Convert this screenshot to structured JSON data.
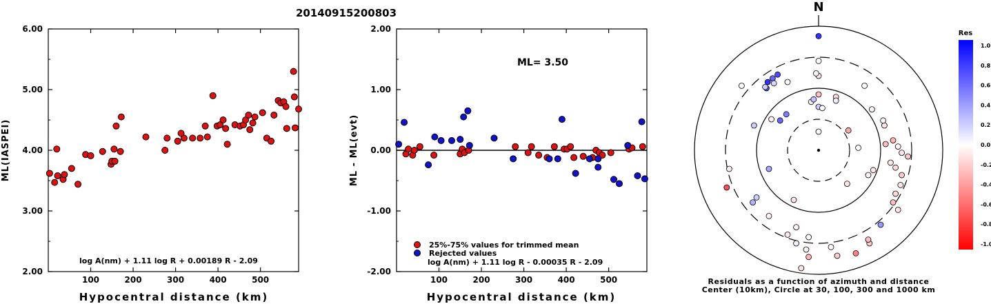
{
  "title": "20140915200803",
  "colors": {
    "used": "#dd1111",
    "rejected": "#1111cc",
    "axis": "#000000"
  },
  "chart_data": [
    {
      "type": "scatter",
      "xlabel": "Hypocentral distance (km)",
      "ylabel": "ML(IASPEI)",
      "xlim": [
        0,
        590
      ],
      "ylim": [
        2.0,
        6.0
      ],
      "yticks": [
        "6.00",
        "5.00",
        "4.00",
        "3.00",
        "2.00"
      ],
      "ytick_values": [
        6,
        5,
        4,
        3,
        2
      ],
      "xticks": [
        "100",
        "200",
        "300",
        "400",
        "500"
      ],
      "xtick_values": [
        100,
        200,
        300,
        400,
        500
      ],
      "annotation": "log A(nm) + 1.11 log R + 0.00189 R - 2.09",
      "series": [
        {
          "points": [
            [
              3,
              3.62
            ],
            [
              15,
              3.47
            ],
            [
              20,
              4.02
            ],
            [
              22,
              3.58
            ],
            [
              35,
              3.52
            ],
            [
              38,
              3.6
            ],
            [
              55,
              3.7
            ],
            [
              70,
              3.44
            ],
            [
              88,
              3.93
            ],
            [
              100,
              3.91
            ],
            [
              128,
              3.98
            ],
            [
              148,
              3.77
            ],
            [
              150,
              3.82
            ],
            [
              155,
              4.02
            ],
            [
              157,
              3.82
            ],
            [
              160,
              4.4
            ],
            [
              170,
              3.98
            ],
            [
              172,
              4.55
            ],
            [
              230,
              4.22
            ],
            [
              275,
              4.0
            ],
            [
              280,
              4.2
            ],
            [
              305,
              4.15
            ],
            [
              313,
              4.28
            ],
            [
              320,
              4.2
            ],
            [
              340,
              4.2
            ],
            [
              358,
              4.2
            ],
            [
              370,
              4.4
            ],
            [
              375,
              4.22
            ],
            [
              388,
              4.9
            ],
            [
              398,
              4.4
            ],
            [
              405,
              4.42
            ],
            [
              412,
              4.5
            ],
            [
              418,
              4.36
            ],
            [
              422,
              4.1
            ],
            [
              440,
              4.42
            ],
            [
              452,
              4.4
            ],
            [
              460,
              4.42
            ],
            [
              465,
              4.5
            ],
            [
              472,
              4.58
            ],
            [
              475,
              4.34
            ],
            [
              482,
              4.45
            ],
            [
              487,
              4.55
            ],
            [
              505,
              4.62
            ],
            [
              515,
              4.2
            ],
            [
              525,
              4.15
            ],
            [
              532,
              4.58
            ],
            [
              542,
              4.82
            ],
            [
              548,
              4.78
            ],
            [
              555,
              4.8
            ],
            [
              560,
              4.72
            ],
            [
              562,
              4.36
            ],
            [
              578,
              5.3
            ],
            [
              580,
              4.88
            ],
            [
              582,
              4.37
            ],
            [
              590,
              4.68
            ]
          ]
        }
      ]
    },
    {
      "type": "scatter",
      "xlabel": "Hypocentral distance (km)",
      "ylabel": "ML - ML(evt)",
      "xlim": [
        0,
        590
      ],
      "ylim": [
        -2.0,
        2.0
      ],
      "yticks": [
        "2.00",
        "1.00",
        "0.00",
        "-1.00",
        "-2.00"
      ],
      "ytick_values": [
        2,
        1,
        0,
        -1,
        -2
      ],
      "xticks": [
        "100",
        "200",
        "300",
        "400",
        "500"
      ],
      "xtick_values": [
        100,
        200,
        300,
        400,
        500
      ],
      "ml_label": "ML= 3.50",
      "legend": [
        "25%-75% values for trimmed mean",
        "Rejected values"
      ],
      "annotation": "log A(nm) + 1.11 log R - 0.00035 R - 2.09",
      "series": [
        {
          "name": "25%-75% values for trimmed mean",
          "points": [
            [
              22,
              -0.06
            ],
            [
              28,
              0.02
            ],
            [
              38,
              -0.08
            ],
            [
              42,
              0.0
            ],
            [
              55,
              0.06
            ],
            [
              88,
              -0.08
            ],
            [
              150,
              -0.06
            ],
            [
              155,
              0.02
            ],
            [
              160,
              -0.04
            ],
            [
              170,
              0.0
            ],
            [
              280,
              0.06
            ],
            [
              310,
              -0.04
            ],
            [
              318,
              0.06
            ],
            [
              335,
              -0.08
            ],
            [
              355,
              -0.12
            ],
            [
              372,
              0.06
            ],
            [
              395,
              0.02
            ],
            [
              402,
              0.02
            ],
            [
              410,
              0.06
            ],
            [
              418,
              -0.12
            ],
            [
              440,
              -0.1
            ],
            [
              462,
              -0.12
            ],
            [
              470,
              0.0
            ],
            [
              478,
              -0.04
            ],
            [
              485,
              -0.08
            ],
            [
              505,
              -0.04
            ],
            [
              548,
              0.02
            ],
            [
              555,
              0.04
            ],
            [
              580,
              0.06
            ]
          ]
        },
        {
          "name": "Rejected values",
          "points": [
            [
              5,
              0.1
            ],
            [
              18,
              0.46
            ],
            [
              75,
              -0.24
            ],
            [
              90,
              0.22
            ],
            [
              105,
              0.16
            ],
            [
              130,
              0.16
            ],
            [
              150,
              0.18
            ],
            [
              158,
              0.55
            ],
            [
              168,
              0.65
            ],
            [
              172,
              0.08
            ],
            [
              230,
              0.2
            ],
            [
              275,
              -0.14
            ],
            [
              360,
              -0.14
            ],
            [
              380,
              -0.14
            ],
            [
              390,
              0.51
            ],
            [
              422,
              -0.38
            ],
            [
              455,
              -0.14
            ],
            [
              475,
              -0.28
            ],
            [
              475,
              -0.14
            ],
            [
              512,
              -0.48
            ],
            [
              525,
              -0.55
            ],
            [
              545,
              0.08
            ],
            [
              568,
              -0.42
            ],
            [
              578,
              0.47
            ],
            [
              585,
              -0.47
            ]
          ]
        }
      ]
    }
  ],
  "polar": {
    "north_label": "N",
    "caption_line1": "Residuals as a function of azimuth and distance",
    "caption_line2": "Center (10km), Circle at 30, 100, 300 and 1000 km",
    "residuals": [
      [
        0.0,
        0.15,
        -0.02
      ],
      [
        0.0,
        0.35,
        0.2
      ],
      [
        0.0,
        0.72,
        0.02
      ],
      [
        0.0,
        0.92,
        0.8
      ],
      [
        0.0,
        0.6,
        -0.1
      ],
      [
        -0.02,
        0.62,
        0.05
      ],
      [
        0.0,
        0.45,
        -0.25
      ],
      [
        -0.08,
        -0.7,
        0.02
      ],
      [
        -0.14,
        -0.95,
        -0.1
      ],
      [
        -0.1,
        -0.8,
        -0.05
      ],
      [
        -0.42,
        0.5,
        0.7
      ],
      [
        -0.33,
        0.61,
        0.7
      ],
      [
        -0.37,
        0.58,
        0.6
      ],
      [
        -0.41,
        0.55,
        0.8
      ],
      [
        -0.43,
        0.51,
        0.2
      ],
      [
        -0.36,
        0.54,
        0.15
      ],
      [
        -0.26,
        0.29,
        0.5
      ],
      [
        -0.31,
        0.24,
        0.6
      ],
      [
        -0.25,
        0.55,
        0.0
      ],
      [
        -0.06,
        0.39,
        -0.05
      ],
      [
        0.03,
        0.34,
        0.0
      ],
      [
        0.14,
        0.43,
        -0.15
      ],
      [
        0.37,
        0.52,
        0.0
      ],
      [
        0.43,
        0.33,
        -0.05
      ],
      [
        0.53,
        0.2,
        -0.1
      ],
      [
        0.54,
        0.05,
        -0.25
      ],
      [
        0.6,
        0.08,
        -0.3
      ],
      [
        0.64,
        0.03,
        -0.05
      ],
      [
        0.67,
        -0.02,
        -0.1
      ],
      [
        0.72,
        -0.05,
        -0.2
      ],
      [
        0.58,
        -0.1,
        -0.1
      ],
      [
        0.62,
        -0.14,
        -0.15
      ],
      [
        0.67,
        -0.2,
        -0.2
      ],
      [
        0.66,
        -0.28,
        -0.1
      ],
      [
        0.62,
        -0.35,
        -0.15
      ],
      [
        0.6,
        -0.42,
        -0.25
      ],
      [
        0.64,
        -0.48,
        -0.1
      ],
      [
        0.5,
        -0.6,
        0.4
      ],
      [
        0.41,
        -0.75,
        -0.2
      ],
      [
        0.3,
        -0.83,
        -0.5
      ],
      [
        0.15,
        -0.85,
        -0.2
      ],
      [
        0.1,
        -0.78,
        -0.05
      ],
      [
        -0.08,
        -0.86,
        -0.3
      ],
      [
        -0.18,
        -0.75,
        0.05
      ],
      [
        -0.25,
        -0.68,
        -0.1
      ],
      [
        -0.4,
        -0.53,
        -0.05
      ],
      [
        -0.5,
        -0.38,
        0.2
      ],
      [
        -0.53,
        -0.42,
        0.3
      ],
      [
        -0.72,
        -0.15,
        -0.05
      ],
      [
        -0.74,
        -0.3,
        -0.7
      ],
      [
        -0.62,
        0.52,
        0.0
      ],
      [
        -0.38,
        0.25,
        -0.05
      ],
      [
        -0.4,
        -0.15,
        0.35
      ],
      [
        -0.2,
        -0.4,
        -0.1
      ],
      [
        0.44,
        -0.16,
        -0.1
      ],
      [
        0.32,
        0.02,
        0.0
      ],
      [
        0.4,
        -0.2,
        -0.05
      ],
      [
        -0.18,
        -0.62,
        -0.05
      ],
      [
        0.23,
        -0.27,
        -0.1
      ],
      [
        0.14,
        0.4,
        0.05
      ],
      [
        -0.04,
        0.41,
        0.25
      ],
      [
        0.52,
        0.24,
        -0.05
      ],
      [
        0.4,
        -0.72,
        -0.25
      ],
      [
        -0.52,
        0.2,
        0.2
      ],
      [
        0.24,
        0.16,
        -0.35
      ]
    ],
    "colorbar": {
      "title": "Res",
      "labels": [
        "1.0",
        "0.8",
        "0.6",
        "0.4",
        "0.2",
        "0.0",
        "-0.2",
        "-0.4",
        "-0.6",
        "-0.8",
        "-1.0"
      ]
    }
  }
}
